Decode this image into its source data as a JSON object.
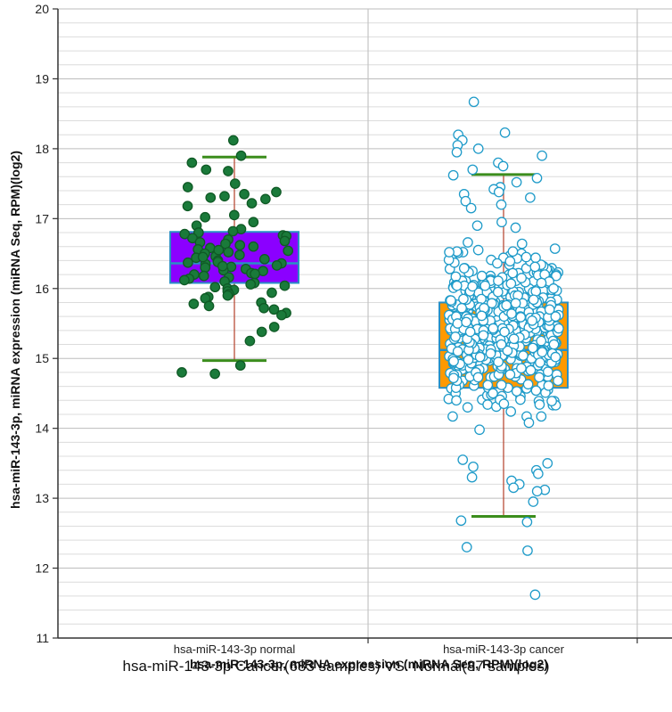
{
  "chart_data": {
    "type": "box",
    "title": "hsa-miR-143-3p Cancer(683 samples) VS. Normal(87 samples)",
    "xlabel": "hsa-miR-143-3p, miRNA expression (miRNA Seq, RPM)(log2)",
    "ylabel": "hsa-miR-143-3p, miRNA expression (miRNA Seq, RPM)(log2)",
    "ylim": [
      11,
      20
    ],
    "yticks": [
      11,
      12,
      13,
      14,
      15,
      16,
      17,
      18,
      19,
      20
    ],
    "grid": true,
    "categories": [
      "hsa-miR-143-3p normal",
      "hsa-miR-143-3p cancer"
    ],
    "series": [
      {
        "name": "hsa-miR-143-3p normal",
        "samples": 87,
        "box_color": "#8b00ff",
        "point_fill": "#1a7a3a",
        "point_stroke": "#0f5a25",
        "whisker_low": 14.97,
        "q1": 16.08,
        "median": 16.36,
        "q3": 16.81,
        "whisker_high": 17.88,
        "points": [
          18.12,
          17.9,
          17.8,
          17.7,
          17.68,
          17.5,
          17.45,
          17.38,
          17.35,
          17.32,
          17.3,
          17.28,
          17.22,
          17.18,
          17.05,
          17.02,
          16.95,
          16.9,
          16.85,
          16.82,
          16.8,
          16.78,
          16.76,
          16.75,
          16.72,
          16.7,
          16.68,
          16.66,
          16.64,
          16.62,
          16.6,
          16.58,
          16.56,
          16.54,
          16.52,
          16.5,
          16.48,
          16.46,
          16.44,
          16.42,
          16.4,
          16.38,
          16.37,
          16.36,
          16.35,
          16.33,
          16.31,
          16.3,
          16.28,
          16.26,
          16.25,
          16.22,
          16.2,
          16.18,
          16.16,
          16.14,
          16.12,
          16.1,
          16.08,
          16.06,
          16.04,
          16.02,
          16.0,
          15.98,
          15.96,
          15.94,
          15.92,
          15.9,
          15.88,
          15.86,
          15.8,
          15.78,
          15.75,
          15.72,
          15.7,
          15.65,
          15.62,
          15.45,
          15.38,
          15.25,
          14.9,
          14.8,
          14.78,
          16.55,
          16.45,
          16.32,
          16.21
        ]
      },
      {
        "name": "hsa-miR-143-3p cancer",
        "samples": 683,
        "box_color": "#ff9900",
        "point_fill": "#ffffff",
        "point_stroke": "#1f9bc9",
        "whisker_low": 12.74,
        "q1": 14.58,
        "median": 15.12,
        "q3": 15.8,
        "whisker_high": 17.63,
        "points": [
          18.67,
          18.23,
          18.2,
          18.12,
          18.05,
          18.0,
          17.95,
          17.9,
          17.8,
          17.75,
          17.7,
          17.62,
          17.58,
          17.52,
          17.45,
          17.42,
          17.38,
          17.35,
          17.3,
          17.25,
          17.2,
          17.15,
          13.55,
          13.5,
          13.45,
          13.4,
          13.35,
          13.3,
          13.25,
          13.2,
          13.15,
          13.12,
          13.1,
          12.95,
          12.68,
          12.66,
          12.3,
          12.25,
          11.62
        ]
      }
    ]
  }
}
